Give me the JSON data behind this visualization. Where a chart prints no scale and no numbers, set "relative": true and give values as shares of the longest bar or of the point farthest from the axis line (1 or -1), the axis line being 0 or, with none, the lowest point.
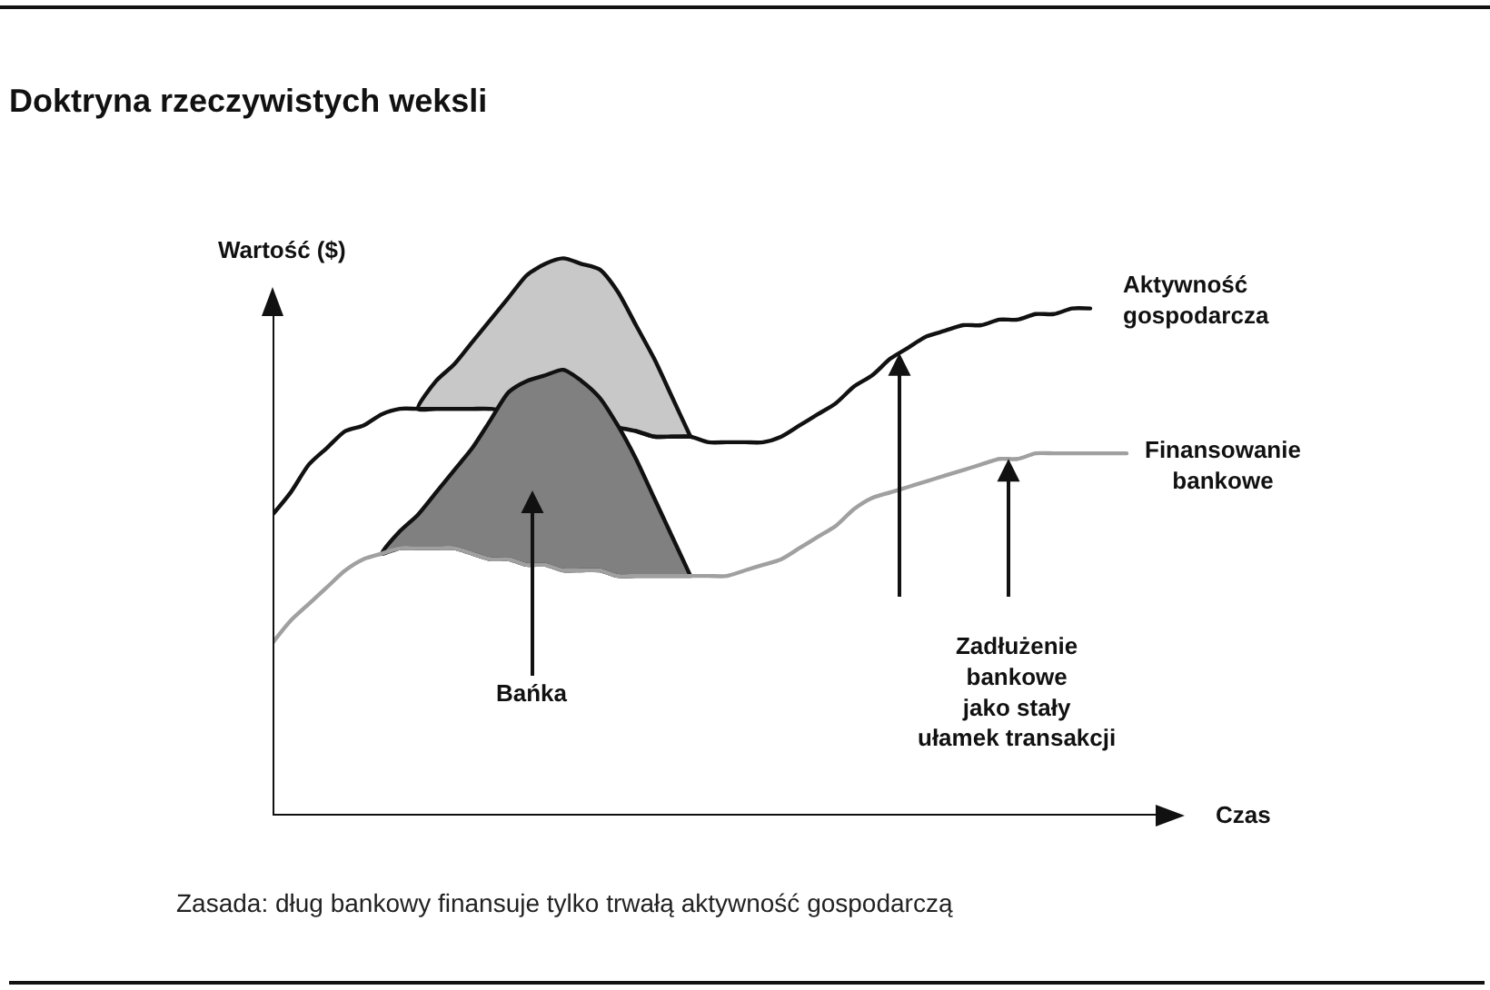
{
  "chart_data": {
    "type": "line",
    "relative": true,
    "title": "Doktryna rzeczywistych weksli",
    "xlabel": "Czas",
    "ylabel": "Wartość ($)",
    "categories": [
      null,
      null,
      null,
      null,
      null,
      null,
      null,
      null,
      null,
      null,
      null,
      null,
      null,
      null,
      null,
      null,
      null,
      null,
      null,
      null,
      null,
      null,
      null,
      null,
      null,
      null,
      null,
      null,
      null,
      null,
      null,
      null,
      null,
      null,
      null,
      null,
      null,
      null,
      null,
      null,
      null,
      null,
      null,
      null,
      null,
      null,
      null,
      null
    ],
    "series": [
      {
        "type": "area",
        "color": "#c8c8c8",
        "values": [
          null,
          null,
          null,
          null,
          null,
          null,
          null,
          null,
          0.73,
          0.78,
          0.81,
          0.85,
          0.89,
          0.93,
          0.97,
          0.99,
          1.0,
          0.99,
          0.98,
          0.94,
          0.88,
          0.82,
          0.75,
          0.68,
          null,
          null,
          null,
          null,
          null,
          null,
          null,
          null,
          null,
          null,
          null,
          null,
          null,
          null,
          null,
          null,
          null,
          null,
          null,
          null,
          null,
          null,
          null,
          null
        ]
      },
      {
        "name": "Aktywność gospodarcza",
        "color": "#111111",
        "values": [
          0.54,
          0.58,
          0.63,
          0.66,
          0.69,
          0.7,
          0.72,
          0.73,
          0.73,
          0.73,
          0.73,
          0.73,
          0.73,
          null,
          null,
          null,
          null,
          null,
          null,
          null,
          0.69,
          0.68,
          0.68,
          0.68,
          0.67,
          0.67,
          0.67,
          0.67,
          0.68,
          0.7,
          0.72,
          0.74,
          0.77,
          0.79,
          0.82,
          0.84,
          0.86,
          0.87,
          0.88,
          0.88,
          0.89,
          0.89,
          0.9,
          0.9,
          0.91,
          0.91,
          null,
          null
        ]
      },
      {
        "type": "area",
        "color": "#808080",
        "values": [
          null,
          null,
          null,
          null,
          null,
          null,
          0.47,
          0.51,
          0.54,
          0.58,
          0.62,
          0.66,
          0.71,
          0.76,
          0.78,
          0.79,
          0.8,
          0.78,
          0.75,
          0.7,
          0.64,
          0.57,
          0.5,
          0.43,
          null,
          null,
          null,
          null,
          null,
          null,
          null,
          null,
          null,
          null,
          null,
          null,
          null,
          null,
          null,
          null,
          null,
          null,
          null,
          null,
          null,
          null,
          null,
          null
        ]
      },
      {
        "name": "Finansowanie bankowe",
        "color": "#a0a0a0",
        "values": [
          0.31,
          0.35,
          0.38,
          0.41,
          0.44,
          0.46,
          0.47,
          0.48,
          0.48,
          0.48,
          0.48,
          0.47,
          0.46,
          0.46,
          0.45,
          0.45,
          0.44,
          0.44,
          0.44,
          0.43,
          0.43,
          0.43,
          0.43,
          0.43,
          0.43,
          0.43,
          0.44,
          0.45,
          0.46,
          0.48,
          0.5,
          0.52,
          0.55,
          0.57,
          0.58,
          0.59,
          0.6,
          0.61,
          0.62,
          0.63,
          0.64,
          0.64,
          0.65,
          0.65,
          0.65,
          0.65,
          0.65,
          0.65
        ]
      }
    ],
    "annotations": [
      "Bańka",
      "Zadłużenie\nbankowe\njako stały\nułamek transakcji",
      "Zasada: dług bankowy finansuje tylko trwałą aktywność gospodarczą"
    ]
  }
}
